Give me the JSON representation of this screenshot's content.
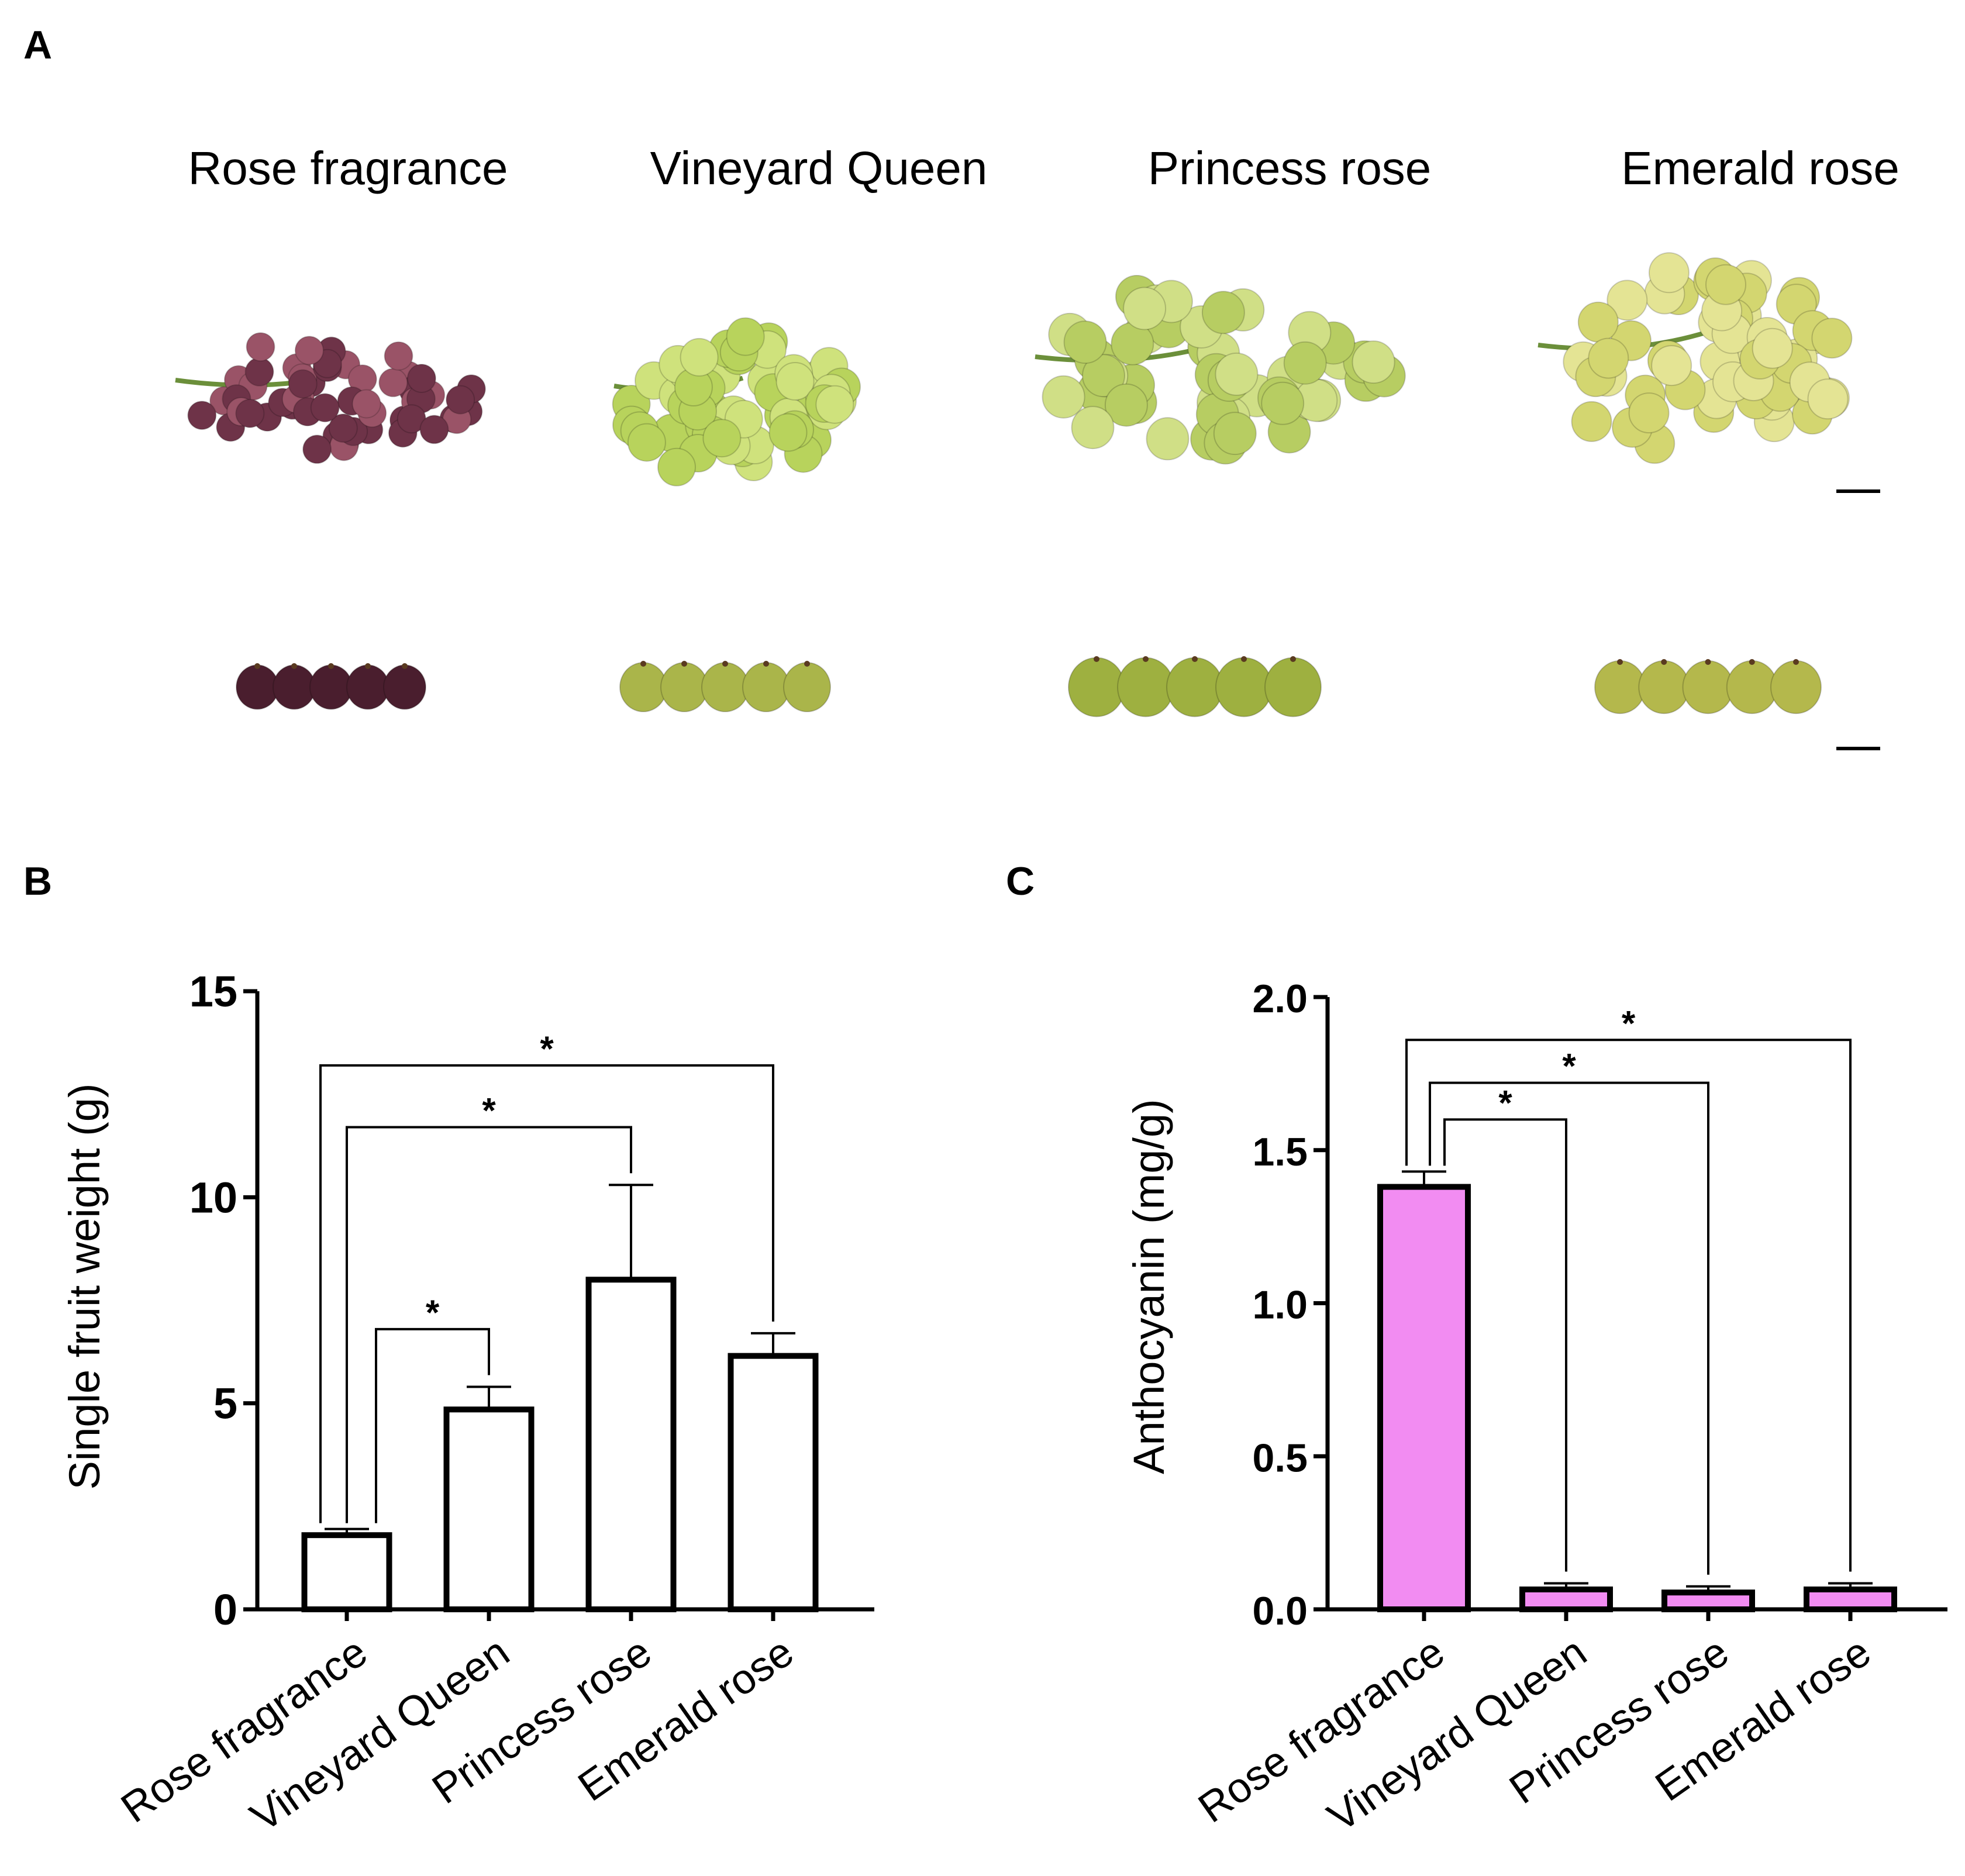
{
  "panels": {
    "a": {
      "letter": "A"
    },
    "b": {
      "letter": "B"
    },
    "c": {
      "letter": "C"
    }
  },
  "varieties": [
    "Rose fragrance",
    "Vineyard Queen",
    "Princess rose",
    "Emerald rose"
  ],
  "photo_colors": {
    "rose_fragrance": "#6e3348",
    "rose_fragrance_light": "#9a5367",
    "vineyard_queen": "#b8d35c",
    "princess_rose": "#b7cd62",
    "emerald_rose": "#d3d670",
    "berry_dark": "#4a1e2e",
    "berry_green": "#aab54a",
    "stem": "#6b8f3a"
  },
  "chart_data": [
    {
      "id": "B",
      "type": "bar",
      "categories": [
        "Rose fragrance",
        "Vineyard Queen",
        "Princess rose",
        "Emerald rose"
      ],
      "values": [
        1.8,
        4.85,
        8.0,
        6.15
      ],
      "errors": [
        0.15,
        0.55,
        2.3,
        0.55
      ],
      "title": "",
      "xlabel": "",
      "ylabel": "Single fruit weight (g)",
      "ylim": [
        0,
        15
      ],
      "yticks": [
        0,
        5,
        10,
        15
      ],
      "ytick_labels": [
        "0",
        "5",
        "10",
        "15"
      ],
      "bar_fill": "#ffffff",
      "significance": [
        {
          "from": 0,
          "to": 1,
          "label": "*",
          "level": 6.8
        },
        {
          "from": 0,
          "to": 2,
          "label": "*",
          "level": 11.7
        },
        {
          "from": 0,
          "to": 3,
          "label": "*",
          "level": 13.2
        }
      ]
    },
    {
      "id": "C",
      "type": "bar",
      "categories": [
        "Rose fragrance",
        "Vineyard Queen",
        "Princess rose",
        "Emerald rose"
      ],
      "values": [
        1.38,
        0.065,
        0.055,
        0.065
      ],
      "errors": [
        0.05,
        0.02,
        0.02,
        0.02
      ],
      "title": "",
      "xlabel": "",
      "ylabel": "Anthocyanin (mg/g)",
      "ylim": [
        0,
        2.0
      ],
      "yticks": [
        0,
        0.5,
        1.0,
        1.5,
        2.0
      ],
      "ytick_labels": [
        "0.0",
        "0.5",
        "1.0",
        "1.5",
        "2.0"
      ],
      "bar_fill": "#f28cf2",
      "significance": [
        {
          "from": 0,
          "to": 1,
          "label": "*",
          "level": 1.6
        },
        {
          "from": 0,
          "to": 2,
          "label": "*",
          "level": 1.72
        },
        {
          "from": 0,
          "to": 3,
          "label": "*",
          "level": 1.86
        }
      ]
    }
  ]
}
